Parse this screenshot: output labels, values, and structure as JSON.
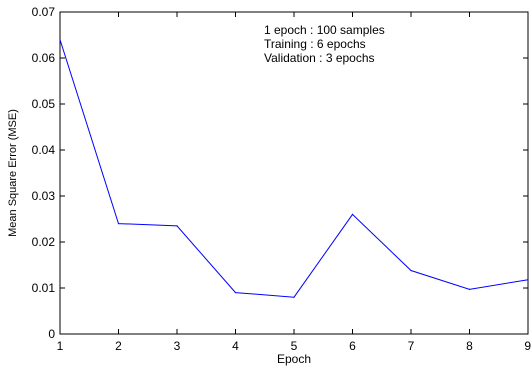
{
  "chart_data": {
    "type": "line",
    "title": "",
    "xlabel": "Epoch",
    "ylabel": "Mean Square Error (MSE)",
    "xlim": [
      1,
      9
    ],
    "ylim": [
      0,
      0.07
    ],
    "x_ticks": [
      1,
      2,
      3,
      4,
      5,
      6,
      7,
      8,
      9
    ],
    "y_ticks": [
      "0",
      "0.01",
      "0.02",
      "0.03",
      "0.04",
      "0.05",
      "0.06",
      "0.07"
    ],
    "grid": false,
    "annotations": [
      "1 epoch : 100 samples",
      "Training : 6 epochs",
      "Validation : 3 epochs"
    ],
    "series": [
      {
        "color": "#0000ff",
        "x": [
          1,
          2,
          3,
          4,
          5,
          6,
          7,
          8,
          9
        ],
        "y": [
          0.064,
          0.024,
          0.0235,
          0.009,
          0.008,
          0.026,
          0.0138,
          0.0097,
          0.0118
        ]
      }
    ]
  }
}
